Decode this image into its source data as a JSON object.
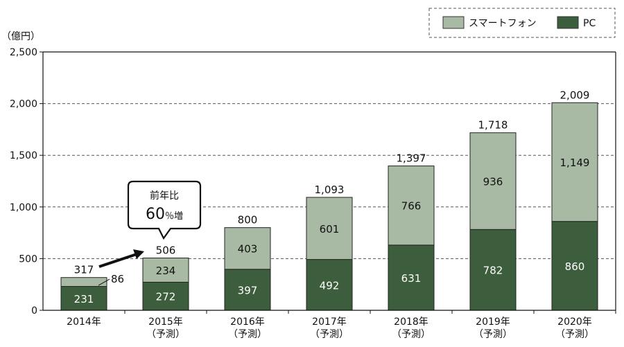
{
  "chart_data": {
    "type": "bar",
    "stacked": true,
    "unit_label": "（億円）",
    "categories": [
      "2014年",
      "2015年",
      "2016年",
      "2017年",
      "2018年",
      "2019年",
      "2020年"
    ],
    "category_notes": [
      "",
      "（予測）",
      "（予測）",
      "（予測）",
      "（予測）",
      "（予測）",
      "（予測）"
    ],
    "series": [
      {
        "name": "PC",
        "color": "#3d5e3d",
        "values": [
          231,
          272,
          397,
          492,
          631,
          782,
          860
        ]
      },
      {
        "name": "スマートフォン",
        "color": "#a8b9a4",
        "values": [
          86,
          234,
          403,
          601,
          766,
          936,
          1149
        ]
      }
    ],
    "inbar_labels": {
      "PC": [
        "231",
        "272",
        "397",
        "492",
        "631",
        "782",
        "860"
      ],
      "スマートフォン": [
        "",
        "234",
        "403",
        "601",
        "766",
        "936",
        "1,149"
      ]
    },
    "outside_label_2014": "86",
    "totals": [
      "317",
      "506",
      "800",
      "1,093",
      "1,397",
      "1,718",
      "2,009"
    ],
    "ylim": [
      0,
      2500
    ],
    "yticks": [
      0,
      500,
      1000,
      1500,
      2000,
      2500
    ],
    "ytick_labels": [
      "0",
      "500",
      "1,000",
      "1,500",
      "2,000",
      "2,500"
    ],
    "grid": true,
    "legend_position": "top-right",
    "legend_order": [
      "スマートフォン",
      "PC"
    ],
    "callout": {
      "line1": "前年比",
      "line2_number": "60",
      "line2_suffix": "％増"
    }
  }
}
